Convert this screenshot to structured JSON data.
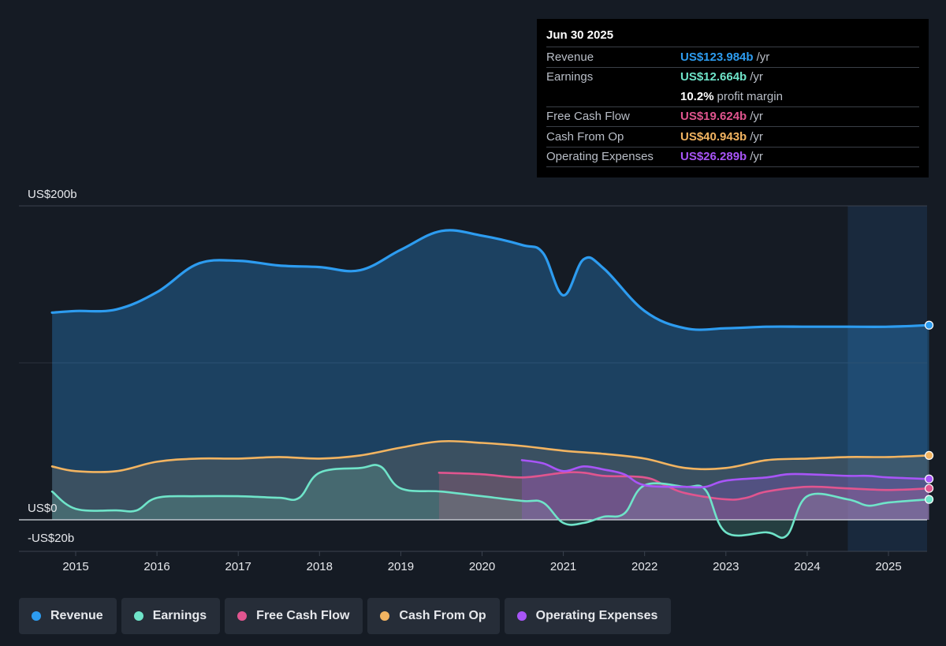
{
  "tooltip": {
    "date": "Jun 30 2025",
    "rows": [
      {
        "label": "Revenue",
        "value": "US$123.984b",
        "suffix": "/yr",
        "color": "#2d9cf0"
      },
      {
        "label": "Earnings",
        "value": "US$12.664b",
        "suffix": "/yr",
        "color": "#6fe4c9"
      },
      {
        "label": "",
        "value": "10.2%",
        "suffix": "profit margin",
        "color": "#ffffff"
      },
      {
        "label": "Free Cash Flow",
        "value": "US$19.624b",
        "suffix": "/yr",
        "color": "#e0558f"
      },
      {
        "label": "Cash From Op",
        "value": "US$40.943b",
        "suffix": "/yr",
        "color": "#f2b461"
      },
      {
        "label": "Operating Expenses",
        "value": "US$26.289b",
        "suffix": "/yr",
        "color": "#a855f7"
      }
    ]
  },
  "legend": [
    {
      "label": "Revenue",
      "color": "#2d9cf0"
    },
    {
      "label": "Earnings",
      "color": "#6fe4c9"
    },
    {
      "label": "Free Cash Flow",
      "color": "#e0558f"
    },
    {
      "label": "Cash From Op",
      "color": "#f2b461"
    },
    {
      "label": "Operating Expenses",
      "color": "#a855f7"
    }
  ],
  "chart_data": {
    "type": "area",
    "y_unit": "US$b",
    "ylim": [
      -20,
      200
    ],
    "y_tick_labels": [
      {
        "value": 200,
        "label": "US$200b"
      },
      {
        "value": 0,
        "label": "US$0"
      },
      {
        "value": -20,
        "label": "-US$20b"
      }
    ],
    "x_ticks": [
      2015,
      2016,
      2017,
      2018,
      2019,
      2020,
      2021,
      2022,
      2023,
      2024,
      2025
    ],
    "xlim": [
      2014.5,
      2025.5
    ],
    "forecast_shade_start": 2024.5,
    "series": [
      {
        "name": "Revenue",
        "color": "#2d9cf0",
        "fill": true,
        "x": [
          2014.71,
          2015,
          2015.5,
          2016,
          2016.5,
          2017,
          2017.5,
          2018,
          2018.5,
          2019,
          2019.5,
          2020,
          2020.5,
          2020.75,
          2021,
          2021.25,
          2021.5,
          2022,
          2022.5,
          2023,
          2023.5,
          2024,
          2024.5,
          2025,
          2025.5
        ],
        "y": [
          132,
          133,
          134,
          145,
          163,
          165,
          162,
          161,
          159,
          172,
          184,
          181,
          175,
          170,
          143,
          166,
          160,
          133,
          122,
          122,
          123,
          123,
          123,
          123,
          124
        ]
      },
      {
        "name": "Earnings",
        "color": "#6fe4c9",
        "fill": false,
        "x": [
          2014.71,
          2015,
          2015.5,
          2015.75,
          2016,
          2016.5,
          2017,
          2017.5,
          2017.75,
          2018,
          2018.5,
          2018.75,
          2019,
          2019.5,
          2020,
          2020.5,
          2020.75,
          2021,
          2021.25,
          2021.5,
          2021.75,
          2022,
          2022.5,
          2022.75,
          2023,
          2023.5,
          2023.75,
          2024,
          2024.5,
          2024.75,
          2025,
          2025.5
        ],
        "y": [
          18,
          7,
          6,
          6,
          14,
          15,
          15,
          14,
          14,
          30,
          33,
          34,
          20,
          18,
          15,
          12,
          11,
          -2,
          -2,
          2,
          4,
          22,
          21,
          19,
          -8,
          -8,
          -10,
          15,
          13,
          9,
          11,
          13
        ]
      },
      {
        "name": "Free Cash Flow",
        "color": "#e0558f",
        "fill": false,
        "x": [
          2019.47,
          2020,
          2020.5,
          2021,
          2021.25,
          2021.5,
          2022,
          2022.25,
          2022.5,
          2023,
          2023.25,
          2023.5,
          2024,
          2024.5,
          2025,
          2025.5
        ],
        "y": [
          30,
          29,
          27,
          30,
          30,
          28,
          27,
          22,
          17,
          13,
          14,
          18,
          21,
          20,
          19,
          20
        ]
      },
      {
        "name": "Cash From Op",
        "color": "#f2b461",
        "fill": false,
        "x": [
          2014.71,
          2015,
          2015.5,
          2016,
          2016.5,
          2017,
          2017.5,
          2018,
          2018.5,
          2019,
          2019.5,
          2020,
          2020.5,
          2021,
          2021.5,
          2022,
          2022.5,
          2023,
          2023.5,
          2024,
          2024.5,
          2025,
          2025.5
        ],
        "y": [
          34,
          31,
          31,
          37,
          39,
          39,
          40,
          39,
          41,
          46,
          50,
          49,
          47,
          44,
          42,
          39,
          33,
          33,
          38,
          39,
          40,
          40,
          41
        ]
      },
      {
        "name": "Operating Expenses",
        "color": "#a855f7",
        "fill": false,
        "x": [
          2020.49,
          2020.75,
          2021,
          2021.25,
          2021.5,
          2021.75,
          2022,
          2022.5,
          2022.75,
          2023,
          2023.5,
          2023.75,
          2024,
          2024.5,
          2024.75,
          2025,
          2025.5
        ],
        "y": [
          38,
          36,
          31,
          34,
          32,
          29,
          22,
          21,
          21,
          25,
          27,
          29,
          29,
          28,
          28,
          27,
          26
        ]
      }
    ]
  }
}
